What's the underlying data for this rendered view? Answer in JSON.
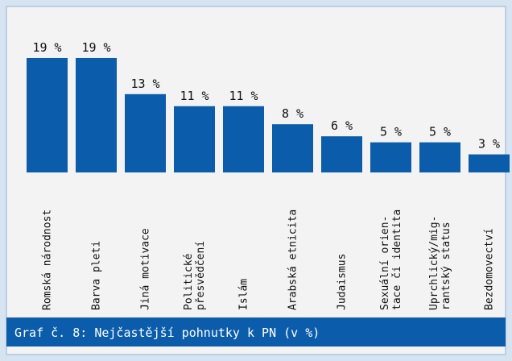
{
  "chart_data": {
    "type": "bar",
    "title": "Graf č. 8: Nejčastější pohnutky k PN (v %)",
    "categories": [
      "Romská národnost",
      "Barva pleti",
      "Jiná motivace",
      "Politické\npřesvědčení",
      "Islám",
      "Arabská etnicita",
      "Judaismus",
      "Sexuální orien-\ntace či identita",
      "Uprchlický/mig-\nrantský status",
      "Bezdomovectví"
    ],
    "values": [
      19,
      19,
      13,
      11,
      11,
      8,
      6,
      5,
      5,
      3
    ],
    "value_labels": [
      "19 %",
      "19 %",
      "13 %",
      "11 %",
      "11 %",
      "8 %",
      "6 %",
      "5 %",
      "5 %",
      "3 %"
    ],
    "color": "#0b5cab",
    "ylim": [
      0,
      20
    ]
  }
}
